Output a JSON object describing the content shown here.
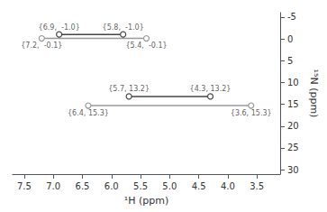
{
  "chart_data": {
    "type": "line",
    "xlabel": "¹H (ppm)",
    "ylabel": "¹⁵N (ppm)",
    "series": [
      {
        "color": "#444444",
        "marker": "circle",
        "x": [
          6.9,
          5.8
        ],
        "values": [
          -1.0,
          -1.0
        ]
      },
      {
        "color": "#999999",
        "marker": "circle",
        "x": [
          7.2,
          5.4
        ],
        "values": [
          -0.1,
          -0.1
        ]
      },
      {
        "color": "#444444",
        "marker": "circle",
        "x": [
          5.7,
          4.3
        ],
        "values": [
          13.2,
          13.2
        ]
      },
      {
        "color": "#999999",
        "marker": "circle",
        "x": [
          6.4,
          3.6
        ],
        "values": [
          15.3,
          15.3
        ]
      }
    ],
    "annotations": [
      {
        "text": "{6.9,  -1.0}",
        "x": 6.9,
        "y": -1.0
      },
      {
        "text": "{5.8,  -1.0}",
        "x": 5.8,
        "y": -1.0
      },
      {
        "text": "{7.2,  -0.1}",
        "x": 7.2,
        "y": -0.1
      },
      {
        "text": "{5.4,  -0.1}",
        "x": 5.4,
        "y": -0.1
      },
      {
        "text": "{5.7, 13.2}",
        "x": 5.7,
        "y": 13.2
      },
      {
        "text": "{4.3, 13.2}",
        "x": 4.3,
        "y": 13.2
      },
      {
        "text": "{6.4, 15.3}",
        "x": 6.4,
        "y": 15.3
      },
      {
        "text": "{3.6, 15.3}",
        "x": 3.6,
        "y": 15.3
      }
    ],
    "xlim": [
      7.7,
      3.1
    ],
    "ylim": [
      31,
      -6
    ],
    "xticks": [
      {
        "value": 7.5,
        "label": "7.5"
      },
      {
        "value": 7.0,
        "label": "7.0"
      },
      {
        "value": 6.5,
        "label": "6.5"
      },
      {
        "value": 6.0,
        "label": "6.0"
      },
      {
        "value": 5.5,
        "label": "5.5"
      },
      {
        "value": 5.0,
        "label": "5.0"
      },
      {
        "value": 4.5,
        "label": "4.5"
      },
      {
        "value": 4.0,
        "label": "4.0"
      },
      {
        "value": 3.5,
        "label": "3.5"
      }
    ],
    "yticks": [
      -5,
      0,
      5,
      10,
      15,
      20,
      25,
      30
    ],
    "grid": false
  }
}
